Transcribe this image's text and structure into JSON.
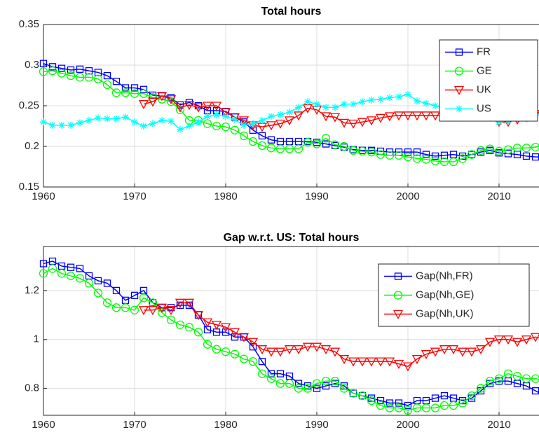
{
  "chart_data": [
    {
      "type": "line",
      "title": "Total hours",
      "legend": "northeast",
      "grid": true,
      "x": [
        1960,
        1961,
        1962,
        1963,
        1964,
        1965,
        1966,
        1967,
        1968,
        1969,
        1970,
        1971,
        1972,
        1973,
        1974,
        1975,
        1976,
        1977,
        1978,
        1979,
        1980,
        1981,
        1982,
        1983,
        1984,
        1985,
        1986,
        1987,
        1988,
        1989,
        1990,
        1991,
        1992,
        1993,
        1994,
        1995,
        1996,
        1997,
        1998,
        1999,
        2000,
        2001,
        2002,
        2003,
        2004,
        2005,
        2006,
        2007,
        2008,
        2009,
        2010,
        2011,
        2012,
        2013,
        2014,
        2015
      ],
      "xlim": [
        1960,
        2015
      ],
      "xticks": [
        1960,
        1970,
        1980,
        1990,
        2000,
        2010
      ],
      "ylim": [
        0.15,
        0.35
      ],
      "yticks": [
        0.15,
        0.2,
        0.25,
        0.3,
        0.35
      ],
      "series": [
        {
          "name": "FR",
          "color": "#0000ff",
          "marker": "square",
          "values": [
            0.302,
            0.298,
            0.296,
            0.294,
            0.295,
            0.293,
            0.291,
            0.287,
            0.28,
            0.272,
            0.272,
            0.27,
            0.263,
            0.262,
            0.26,
            0.251,
            0.254,
            0.25,
            0.244,
            0.244,
            0.243,
            0.236,
            0.23,
            0.22,
            0.213,
            0.208,
            0.206,
            0.206,
            0.206,
            0.206,
            0.205,
            0.203,
            0.201,
            0.199,
            0.196,
            0.195,
            0.195,
            0.194,
            0.193,
            0.193,
            0.193,
            0.193,
            0.19,
            0.188,
            0.189,
            0.19,
            0.188,
            0.19,
            0.193,
            0.195,
            0.192,
            0.191,
            0.19,
            0.188,
            0.187,
            0.187
          ]
        },
        {
          "name": "GE",
          "color": "#00ff00",
          "marker": "circle",
          "values": [
            0.292,
            0.293,
            0.29,
            0.287,
            0.285,
            0.285,
            0.283,
            0.276,
            0.266,
            0.266,
            0.265,
            0.265,
            0.26,
            0.258,
            0.255,
            0.245,
            0.232,
            0.232,
            0.228,
            0.225,
            0.224,
            0.22,
            0.213,
            0.206,
            0.201,
            0.198,
            0.197,
            0.197,
            0.197,
            0.205,
            0.203,
            0.21,
            0.202,
            0.2,
            0.195,
            0.194,
            0.193,
            0.19,
            0.189,
            0.189,
            0.187,
            0.185,
            0.184,
            0.182,
            0.181,
            0.181,
            0.185,
            0.19,
            0.195,
            0.197,
            0.194,
            0.196,
            0.198,
            0.198,
            0.199,
            0.202
          ]
        },
        {
          "name": "UK",
          "color": "#ff0000",
          "marker": "triangle-down",
          "values": [
            null,
            null,
            null,
            null,
            null,
            null,
            null,
            null,
            null,
            null,
            null,
            0.252,
            0.255,
            0.262,
            0.258,
            0.248,
            0.251,
            0.248,
            0.25,
            0.25,
            0.242,
            0.236,
            0.232,
            0.226,
            0.224,
            0.226,
            0.228,
            0.232,
            0.238,
            0.247,
            0.245,
            0.237,
            0.236,
            0.229,
            0.228,
            0.23,
            0.232,
            0.235,
            0.237,
            0.238,
            0.238,
            0.238,
            0.238,
            0.238,
            0.238,
            0.238,
            0.237,
            0.237,
            0.237,
            0.237,
            0.23,
            0.23,
            0.233,
            0.236,
            0.24,
            0.245
          ]
        },
        {
          "name": "US",
          "color": "#00ffff",
          "marker": "asterisk",
          "values": [
            0.23,
            0.226,
            0.226,
            0.226,
            0.229,
            0.232,
            0.235,
            0.234,
            0.234,
            0.236,
            0.23,
            0.225,
            0.228,
            0.232,
            0.231,
            0.221,
            0.225,
            0.23,
            0.237,
            0.239,
            0.237,
            0.233,
            0.226,
            0.228,
            0.232,
            0.237,
            0.239,
            0.242,
            0.248,
            0.255,
            0.252,
            0.248,
            0.248,
            0.252,
            0.252,
            0.255,
            0.257,
            0.258,
            0.26,
            0.261,
            0.264,
            0.256,
            0.253,
            0.25,
            0.248,
            0.247,
            0.245,
            0.244,
            0.243,
            0.237,
            0.23,
            0.232,
            0.235,
            0.235,
            0.238,
            0.243
          ]
        }
      ]
    },
    {
      "type": "line",
      "title": "Gap w.r.t. US: Total hours",
      "legend": "northeast",
      "grid": true,
      "x": [
        1960,
        1961,
        1962,
        1963,
        1964,
        1965,
        1966,
        1967,
        1968,
        1969,
        1970,
        1971,
        1972,
        1973,
        1974,
        1975,
        1976,
        1977,
        1978,
        1979,
        1980,
        1981,
        1982,
        1983,
        1984,
        1985,
        1986,
        1987,
        1988,
        1989,
        1990,
        1991,
        1992,
        1993,
        1994,
        1995,
        1996,
        1997,
        1998,
        1999,
        2000,
        2001,
        2002,
        2003,
        2004,
        2005,
        2006,
        2007,
        2008,
        2009,
        2010,
        2011,
        2012,
        2013,
        2014,
        2015
      ],
      "xlim": [
        1960,
        2015
      ],
      "xticks": [
        1960,
        1970,
        1980,
        1990,
        2000,
        2010
      ],
      "ylim": [
        0.69,
        1.38
      ],
      "yticks": [
        0.8,
        1,
        1.2
      ],
      "series": [
        {
          "name": "Gap(Nh,FR)",
          "color": "#0000ff",
          "marker": "square",
          "values": [
            1.31,
            1.32,
            1.3,
            1.295,
            1.29,
            1.26,
            1.24,
            1.23,
            1.2,
            1.16,
            1.18,
            1.2,
            1.15,
            1.13,
            1.13,
            1.14,
            1.14,
            1.1,
            1.04,
            1.03,
            1.03,
            1.01,
            1.01,
            0.97,
            0.91,
            0.86,
            0.86,
            0.85,
            0.82,
            0.81,
            0.8,
            0.81,
            0.82,
            0.81,
            0.78,
            0.77,
            0.76,
            0.75,
            0.74,
            0.74,
            0.73,
            0.75,
            0.75,
            0.76,
            0.77,
            0.76,
            0.75,
            0.76,
            0.79,
            0.82,
            0.83,
            0.83,
            0.82,
            0.81,
            0.79,
            0.77
          ]
        },
        {
          "name": "Gap(Nh,GE)",
          "color": "#00ff00",
          "marker": "circle",
          "values": [
            1.27,
            1.29,
            1.27,
            1.26,
            1.25,
            1.23,
            1.19,
            1.15,
            1.13,
            1.13,
            1.12,
            1.17,
            1.15,
            1.11,
            1.08,
            1.06,
            1.05,
            1.03,
            0.98,
            0.96,
            0.95,
            0.94,
            0.92,
            0.91,
            0.86,
            0.84,
            0.82,
            0.82,
            0.8,
            0.8,
            0.82,
            0.83,
            0.83,
            0.8,
            0.78,
            0.77,
            0.75,
            0.73,
            0.72,
            0.72,
            0.71,
            0.72,
            0.72,
            0.72,
            0.73,
            0.73,
            0.74,
            0.77,
            0.8,
            0.83,
            0.84,
            0.86,
            0.85,
            0.84,
            0.84,
            0.83
          ]
        },
        {
          "name": "Gap(Nh,UK)",
          "color": "#ff0000",
          "marker": "triangle-down",
          "values": [
            null,
            null,
            null,
            null,
            null,
            null,
            null,
            null,
            null,
            null,
            null,
            1.12,
            1.12,
            1.13,
            1.12,
            1.15,
            1.15,
            1.1,
            1.07,
            1.06,
            1.05,
            1.03,
            1.01,
            0.99,
            0.96,
            0.95,
            0.95,
            0.96,
            0.96,
            0.97,
            0.97,
            0.96,
            0.95,
            0.92,
            0.91,
            0.91,
            0.91,
            0.91,
            0.91,
            0.9,
            0.89,
            0.92,
            0.94,
            0.95,
            0.96,
            0.96,
            0.95,
            0.95,
            0.96,
            0.99,
            1.0,
            1.0,
            0.99,
            1.0,
            1.01,
            1.0
          ]
        }
      ]
    }
  ]
}
